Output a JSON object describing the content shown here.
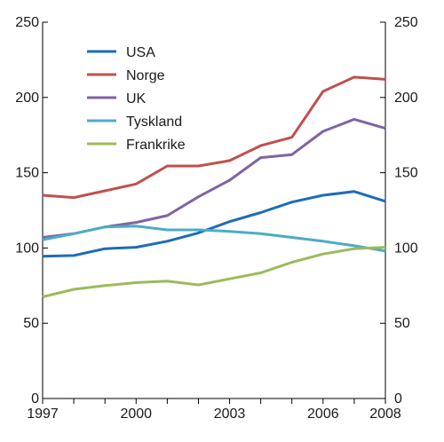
{
  "chart_data": {
    "type": "line",
    "title": "",
    "xlabel": "",
    "ylabel": "",
    "xlim": [
      1997,
      2008
    ],
    "ylim": [
      0,
      250
    ],
    "x_ticks": [
      1997,
      2000,
      2003,
      2006,
      2008
    ],
    "y_ticks": [
      0,
      50,
      100,
      150,
      200,
      250
    ],
    "secondary_y_axis": true,
    "grid": false,
    "legend_position": "top-left",
    "x": [
      1997,
      1998,
      1999,
      2000,
      2001,
      2002,
      2003,
      2004,
      2005,
      2006,
      2007,
      2008
    ],
    "series": [
      {
        "name": "USA",
        "color": "#1f6cb5",
        "values": [
          94.5,
          95,
          99.5,
          100.5,
          104.5,
          110,
          117.5,
          123.5,
          130.5,
          135,
          137.5,
          131
        ]
      },
      {
        "name": "Norge",
        "color": "#c0504d",
        "values": [
          135,
          133.5,
          138,
          142.5,
          154.5,
          154.5,
          158,
          168,
          173.5,
          204,
          213.5,
          212
        ]
      },
      {
        "name": "UK",
        "color": "#8064a2",
        "values": [
          107,
          109.5,
          114,
          117,
          121.5,
          134,
          145,
          160,
          162,
          177.5,
          185.5,
          179.5
        ]
      },
      {
        "name": "Tyskland",
        "color": "#4bacc6",
        "values": [
          105.5,
          109.5,
          114,
          114.5,
          112,
          112,
          111,
          109.5,
          107,
          104.5,
          101.5,
          98
        ]
      },
      {
        "name": "Frankrike",
        "color": "#9bbb59",
        "values": [
          67.5,
          72.5,
          75,
          77,
          78,
          75.5,
          79.5,
          83.5,
          90.5,
          96,
          99.5,
          100.5
        ]
      }
    ]
  }
}
